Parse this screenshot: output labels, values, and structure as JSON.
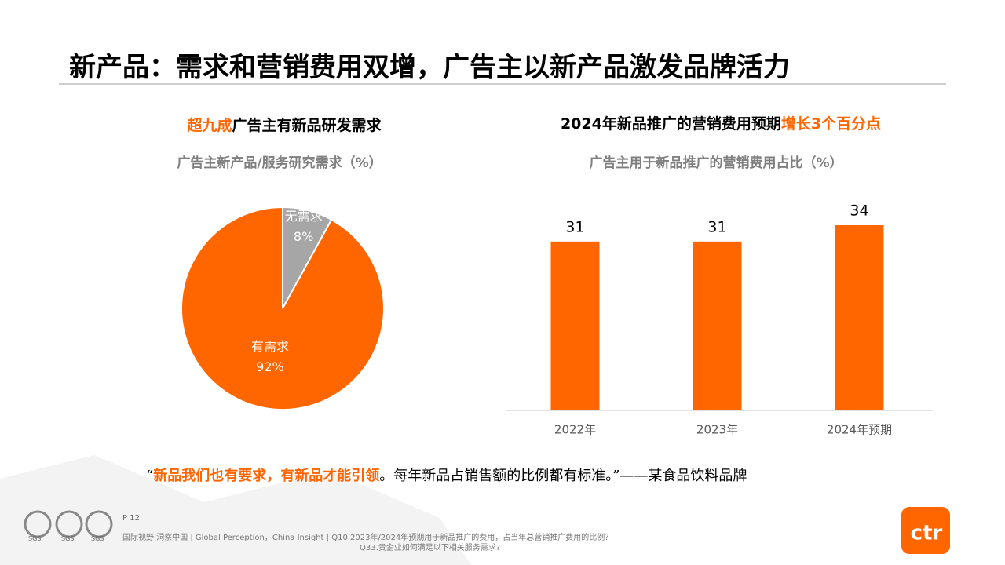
{
  "header": {
    "title": "新产品：需求和营销费用双增，广告主以新产品激发品牌活力"
  },
  "chart_data": [
    {
      "type": "pie",
      "title": [
        "超九成",
        "广告主有新品研发需求"
      ],
      "subtitle": "广告主新产品/服务研究需求（%）",
      "categories": [
        "无需求",
        "有需求"
      ],
      "values": [
        8,
        92
      ],
      "value_labels": [
        "8%",
        "92%"
      ],
      "colors": [
        "#a6a6a6",
        "#ff6600"
      ]
    },
    {
      "type": "bar",
      "title": [
        "2024年新品推广的营销费用预期",
        "增长3个百分点"
      ],
      "subtitle": "广告主用于新品推广的营销费用占比（%）",
      "categories": [
        "2022年",
        "2023年",
        "2024年预期"
      ],
      "values": [
        31,
        31,
        34
      ],
      "color": "#ff6600"
    }
  ],
  "quote": {
    "open": "“",
    "highlight": "新品我们也有要求，有新品才能引领",
    "rest": "。每年新品占销售额的比例都有标准。”",
    "source": "——某食品饮料品牌"
  },
  "footer": {
    "page": "P 12",
    "source_line1": "国际视野  洞察中国 | Global Perception，China Insight | Q10.2023年/2024年预期用于新品推广的费用，占当年总营销推广费用的比例？",
    "source_line2": "Q33.贵企业如何满足以下相关服务需求?",
    "logo": "ctr",
    "badge": "SGS"
  }
}
